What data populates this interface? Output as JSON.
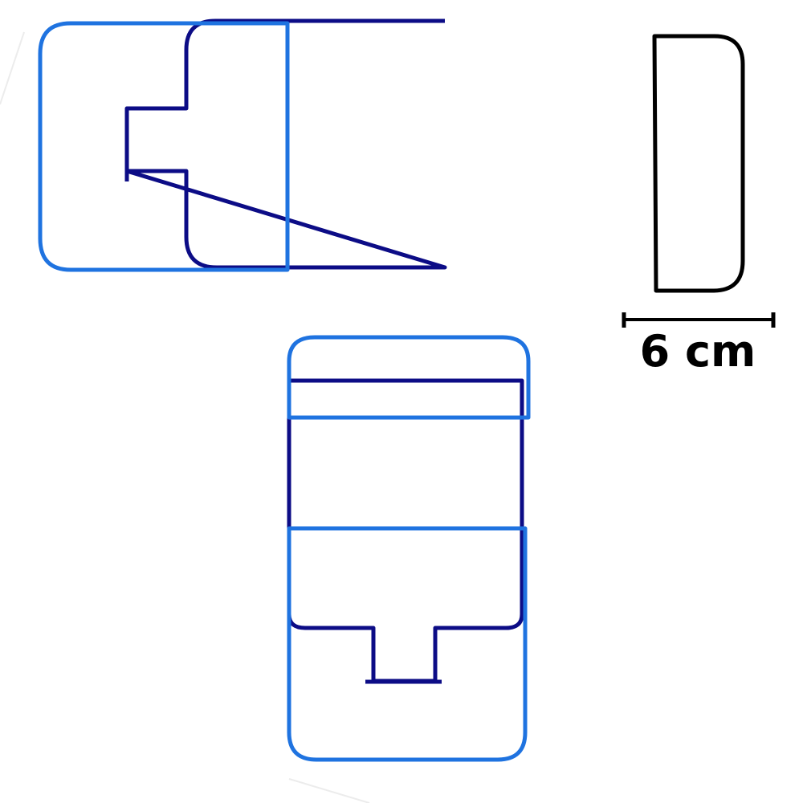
{
  "colors": {
    "light_blue": "#1f73e0",
    "dark_blue": "#0c0c86",
    "black": "#000000"
  },
  "scale_bar": {
    "label": "6 cm"
  }
}
